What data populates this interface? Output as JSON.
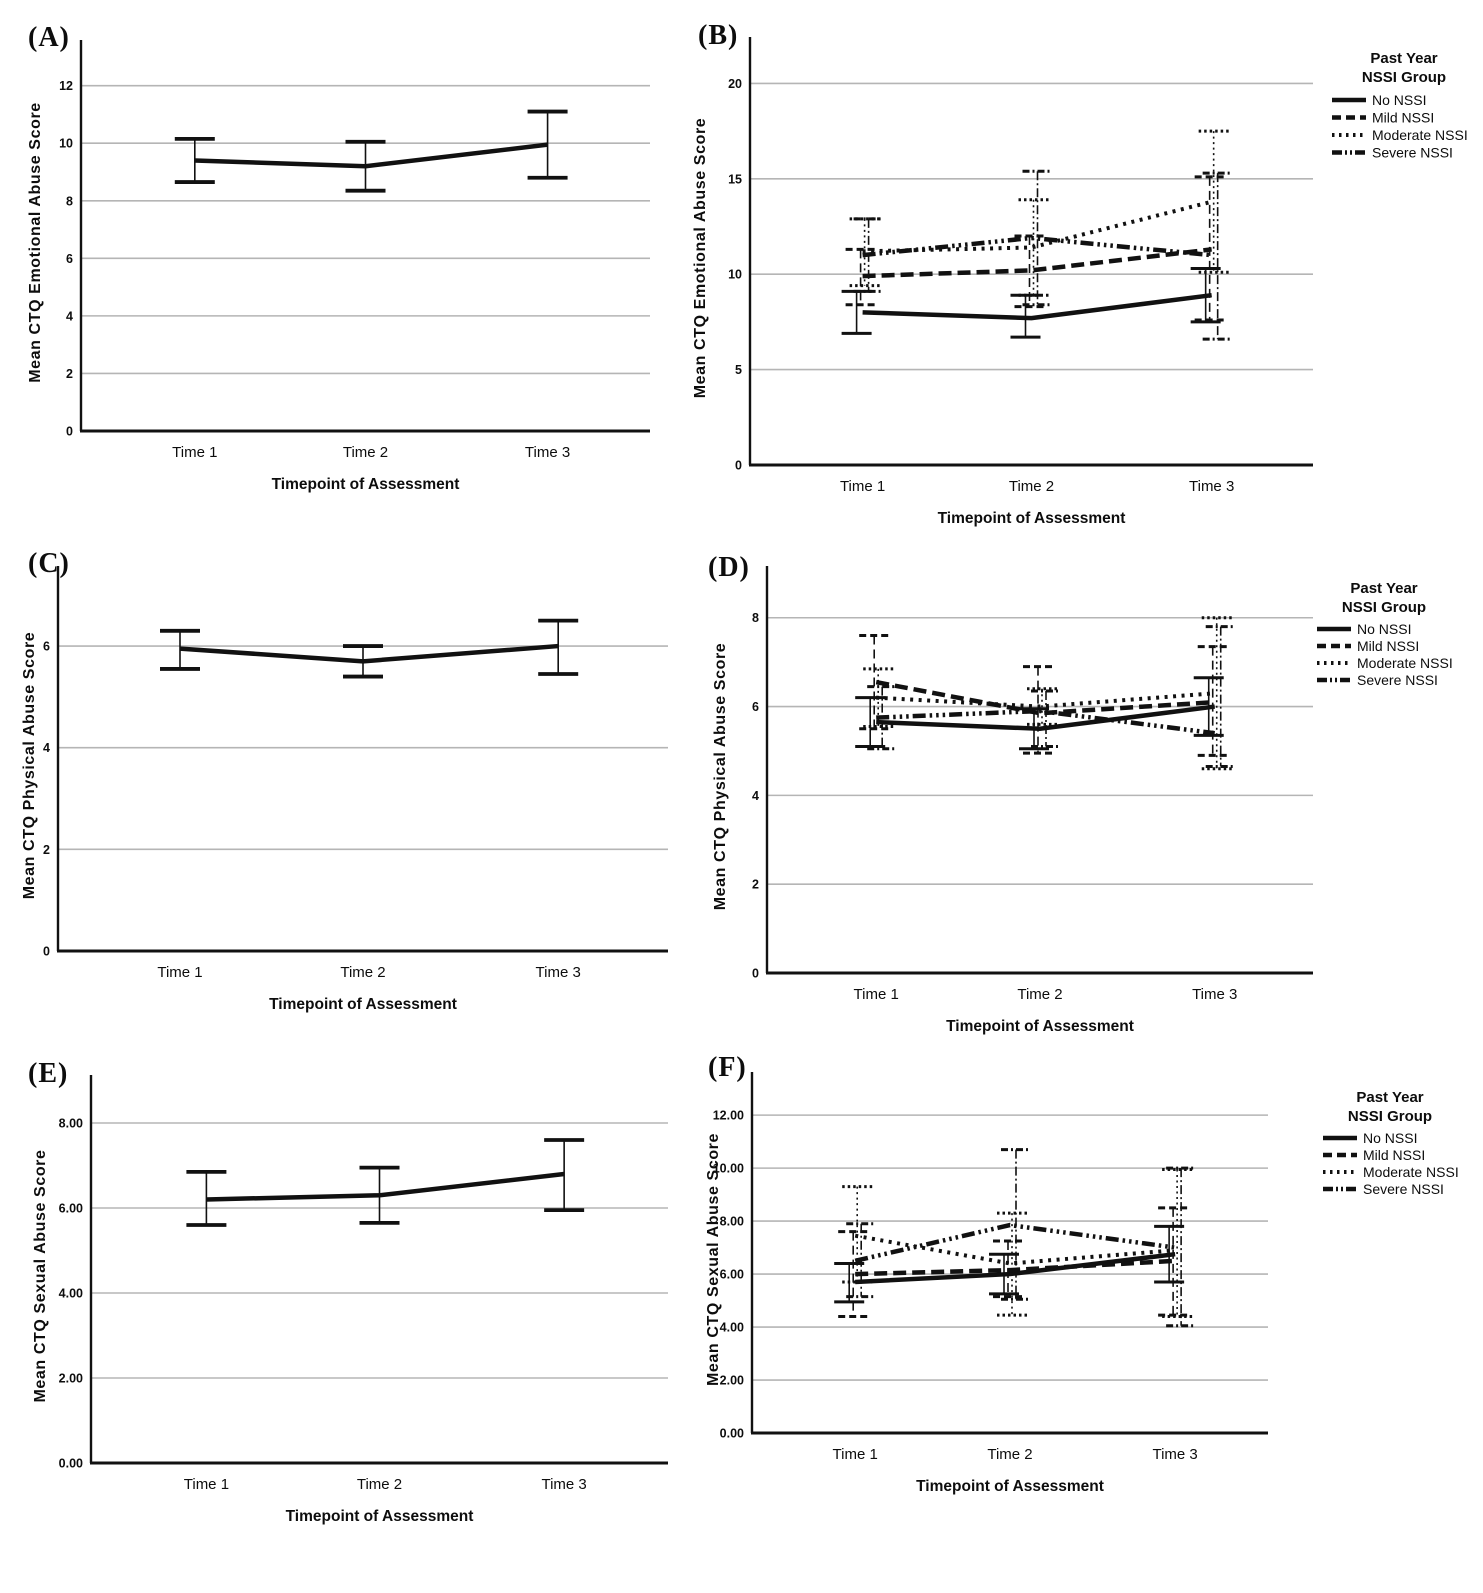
{
  "figure": {
    "background": "#ffffff",
    "text_color": "#0d0d0d",
    "grid_color": "#b5b5b5",
    "line_color": "#111111"
  },
  "legend": {
    "title_line1": "Past Year",
    "title_line2": "NSSI Group",
    "items": [
      "No NSSI",
      "Mild NSSI",
      "Moderate NSSI",
      "Severe NSSI"
    ]
  },
  "chart_data": [
    {
      "id": "A",
      "type": "line",
      "panel_letter": "(A)",
      "xlabel": "Timepoint of Assessment",
      "ylabel": "Mean CTQ Emotional Abuse Score",
      "categories": [
        "Time 1",
        "Time 2",
        "Time 3"
      ],
      "yticks": [
        0,
        2,
        4,
        6,
        8,
        10,
        12
      ],
      "ytick_labels": [
        "0",
        "2",
        "4",
        "6",
        "8",
        "10",
        "12"
      ],
      "ylim": [
        0,
        13.1
      ],
      "grid": true,
      "legend_shown": false,
      "series": [
        {
          "name": "",
          "style": "solid",
          "values": [
            9.4,
            9.2,
            9.95
          ],
          "err_lo": [
            8.65,
            8.35,
            8.8
          ],
          "err_hi": [
            10.15,
            10.05,
            11.1
          ]
        }
      ]
    },
    {
      "id": "B",
      "type": "line",
      "panel_letter": "(B)",
      "xlabel": "Timepoint of Assessment",
      "ylabel": "Mean CTQ Emotional Abuse Score",
      "categories": [
        "Time 1",
        "Time 2",
        "Time 3"
      ],
      "yticks": [
        0,
        5,
        10,
        15,
        20
      ],
      "ytick_labels": [
        "0",
        "5",
        "10",
        "15",
        "20"
      ],
      "ylim": [
        0,
        21.7
      ],
      "grid": true,
      "legend_shown": true,
      "series": [
        {
          "name": "No NSSI",
          "style": "solid",
          "values": [
            8.0,
            7.7,
            8.9
          ],
          "err_lo": [
            6.9,
            6.7,
            7.5
          ],
          "err_hi": [
            9.1,
            8.9,
            10.3
          ]
        },
        {
          "name": "Mild NSSI",
          "style": "dashed",
          "values": [
            9.9,
            10.2,
            11.3
          ],
          "err_lo": [
            8.4,
            8.3,
            7.6
          ],
          "err_hi": [
            11.3,
            12.0,
            15.1
          ]
        },
        {
          "name": "Moderate NSSI",
          "style": "dotted",
          "values": [
            11.2,
            11.4,
            13.8
          ],
          "err_lo": [
            9.4,
            8.9,
            10.1
          ],
          "err_hi": [
            12.9,
            13.9,
            17.5
          ]
        },
        {
          "name": "Severe NSSI",
          "style": "dashdot",
          "values": [
            11.0,
            11.9,
            11.0
          ],
          "err_lo": [
            9.1,
            8.4,
            6.6
          ],
          "err_hi": [
            12.9,
            15.4,
            15.3
          ]
        }
      ]
    },
    {
      "id": "C",
      "type": "line",
      "panel_letter": "(C)",
      "xlabel": "Timepoint of Assessment",
      "ylabel": "Mean CTQ Physical Abuse Score",
      "categories": [
        "Time 1",
        "Time 2",
        "Time 3"
      ],
      "yticks": [
        0,
        2,
        4,
        6
      ],
      "ytick_labels": [
        "0",
        "2",
        "4",
        "6"
      ],
      "ylim": [
        0,
        7.3
      ],
      "grid": true,
      "legend_shown": false,
      "series": [
        {
          "name": "",
          "style": "solid",
          "values": [
            5.95,
            5.7,
            6.0
          ],
          "err_lo": [
            5.55,
            5.4,
            5.45
          ],
          "err_hi": [
            6.3,
            6.0,
            6.5
          ]
        }
      ]
    },
    {
      "id": "D",
      "type": "line",
      "panel_letter": "(D)",
      "xlabel": "Timepoint of Assessment",
      "ylabel": "Mean CTQ Physical Abuse Score",
      "categories": [
        "Time 1",
        "Time 2",
        "Time 3"
      ],
      "yticks": [
        0,
        2,
        4,
        6,
        8
      ],
      "ytick_labels": [
        "0",
        "2",
        "4",
        "6",
        "8"
      ],
      "ylim": [
        0,
        8.85
      ],
      "grid": true,
      "legend_shown": true,
      "series": [
        {
          "name": "No NSSI",
          "style": "solid",
          "values": [
            5.65,
            5.5,
            6.0
          ],
          "err_lo": [
            5.1,
            5.05,
            5.35
          ],
          "err_hi": [
            6.2,
            5.95,
            6.65
          ]
        },
        {
          "name": "Mild NSSI",
          "style": "dashed",
          "values": [
            6.55,
            5.85,
            6.1
          ],
          "err_lo": [
            5.5,
            4.95,
            4.9
          ],
          "err_hi": [
            7.6,
            6.9,
            7.35
          ]
        },
        {
          "name": "Moderate NSSI",
          "style": "dotted",
          "values": [
            6.2,
            6.0,
            6.3
          ],
          "err_lo": [
            5.55,
            5.6,
            4.6
          ],
          "err_hi": [
            6.85,
            6.4,
            8.0
          ]
        },
        {
          "name": "Severe NSSI",
          "style": "dashdot",
          "values": [
            5.75,
            5.9,
            5.4
          ],
          "err_lo": [
            5.05,
            5.1,
            4.65
          ],
          "err_hi": [
            6.45,
            6.35,
            7.8
          ]
        }
      ]
    },
    {
      "id": "E",
      "type": "line",
      "panel_letter": "(E)",
      "xlabel": "Timepoint of Assessment",
      "ylabel": "Mean CTQ Sexual Abuse Score",
      "categories": [
        "Time 1",
        "Time 2",
        "Time 3"
      ],
      "yticks": [
        0,
        2,
        4,
        6,
        8
      ],
      "ytick_labels": [
        "0.00",
        "2.00",
        "4.00",
        "6.00",
        "8.00"
      ],
      "ylim": [
        0,
        8.8
      ],
      "grid": true,
      "legend_shown": false,
      "series": [
        {
          "name": "",
          "style": "solid",
          "values": [
            6.2,
            6.3,
            6.8
          ],
          "err_lo": [
            5.6,
            5.65,
            5.95
          ],
          "err_hi": [
            6.85,
            6.95,
            7.6
          ]
        }
      ]
    },
    {
      "id": "F",
      "type": "line",
      "panel_letter": "(F)",
      "xlabel": "Timepoint of Assessment",
      "ylabel": "Mean CTQ Sexual Abuse Score",
      "categories": [
        "Time 1",
        "Time 2",
        "Time 3"
      ],
      "yticks": [
        0,
        2,
        4,
        6,
        8,
        10,
        12
      ],
      "ytick_labels": [
        "0.00",
        "2.00",
        "4.00",
        "6.00",
        "8.00",
        "10.00",
        "12.00"
      ],
      "ylim": [
        0,
        13.1
      ],
      "grid": true,
      "legend_shown": true,
      "series": [
        {
          "name": "No NSSI",
          "style": "solid",
          "values": [
            5.7,
            6.0,
            6.75
          ],
          "err_lo": [
            4.95,
            5.25,
            5.7
          ],
          "err_hi": [
            6.4,
            6.75,
            7.8
          ]
        },
        {
          "name": "Mild NSSI",
          "style": "dashed",
          "values": [
            6.0,
            6.15,
            6.5
          ],
          "err_lo": [
            4.4,
            5.15,
            4.45
          ],
          "err_hi": [
            7.6,
            7.25,
            8.5
          ]
        },
        {
          "name": "Moderate NSSI",
          "style": "dotted",
          "values": [
            7.45,
            6.4,
            6.9
          ],
          "err_lo": [
            5.7,
            4.45,
            4.4
          ],
          "err_hi": [
            9.3,
            8.3,
            9.95
          ]
        },
        {
          "name": "Severe NSSI",
          "style": "dashdot",
          "values": [
            6.5,
            7.85,
            7.0
          ],
          "err_lo": [
            5.15,
            5.05,
            4.05
          ],
          "err_hi": [
            7.9,
            10.7,
            10.0
          ]
        }
      ]
    }
  ]
}
